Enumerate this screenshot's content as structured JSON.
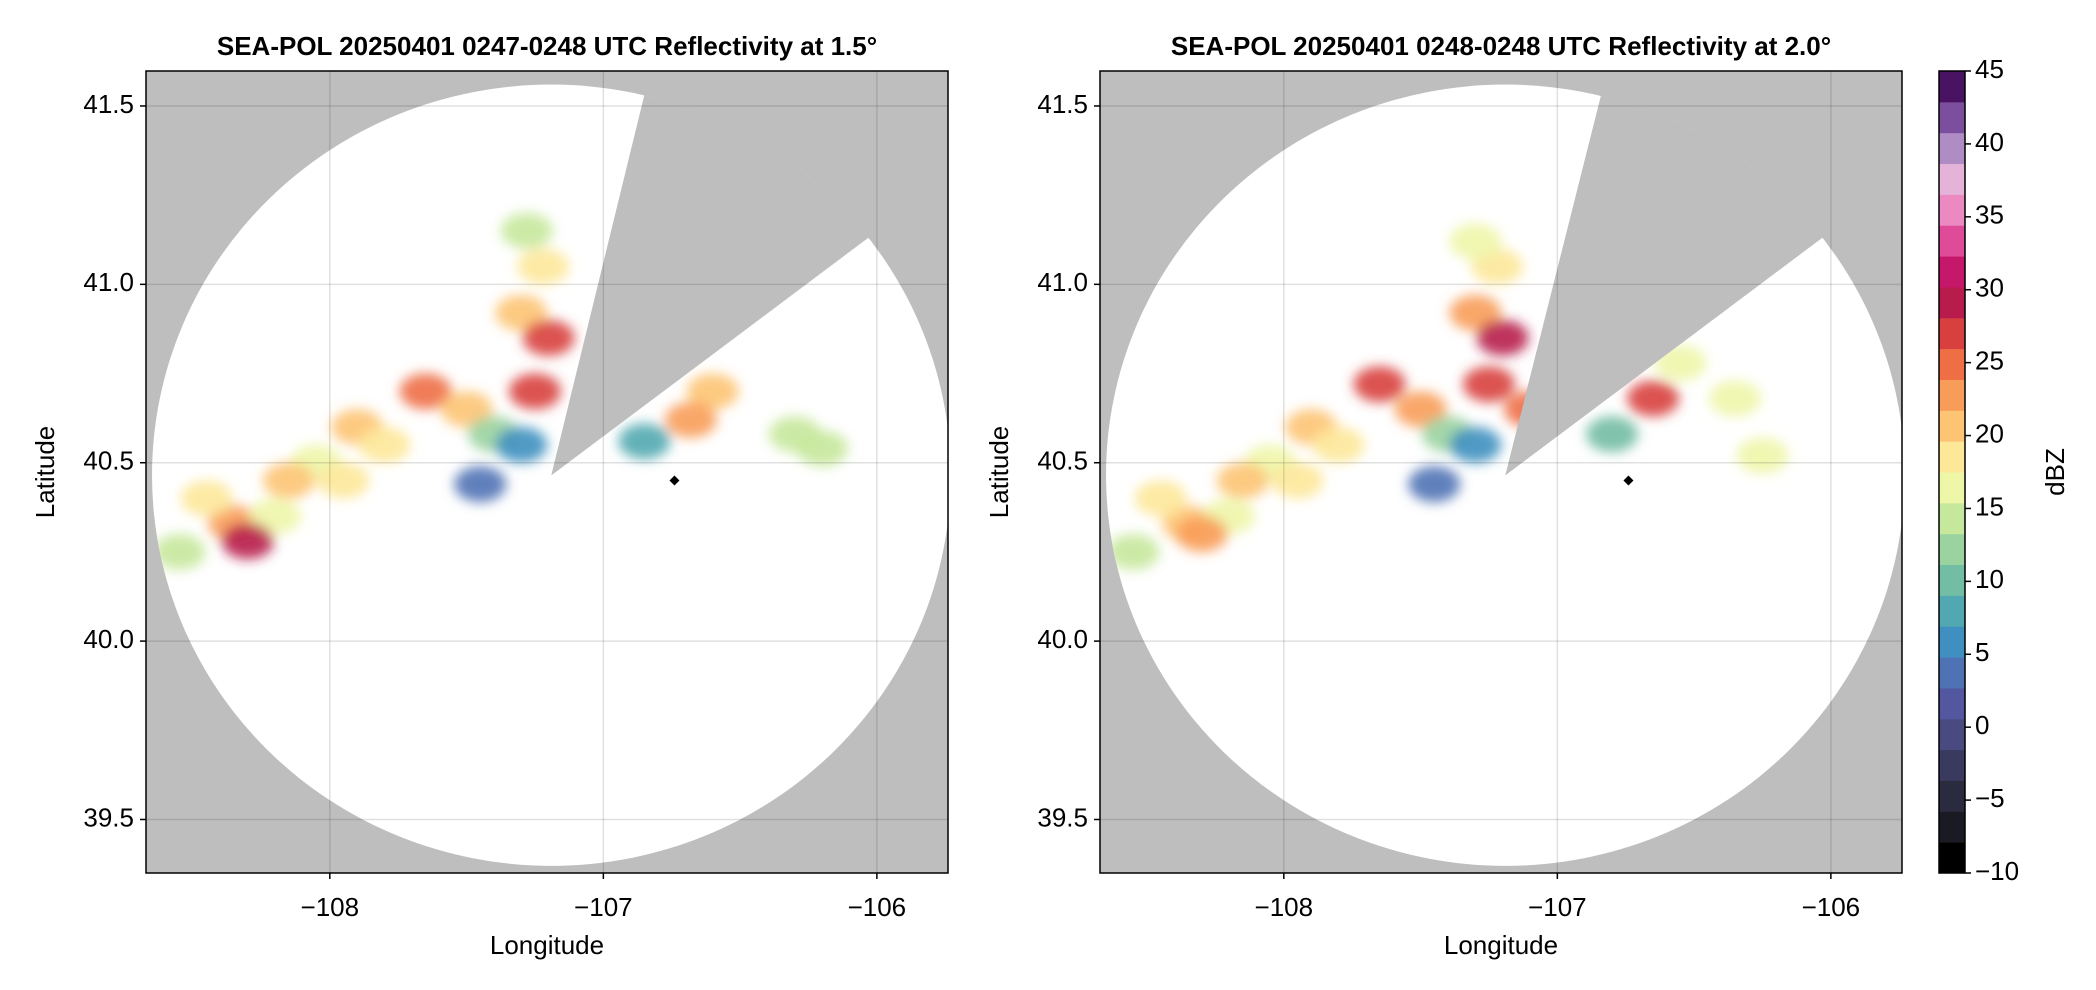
{
  "chart_data": [
    {
      "type": "radar",
      "title": "SEA-POL 20250401 0247-0248 UTC Reflectivity at 1.5°",
      "xlabel": "Longitude",
      "ylabel": "Latitude",
      "xlim": [
        -108.672,
        -105.74
      ],
      "ylim": [
        39.35,
        41.598
      ],
      "xticks": [
        {
          "value": -108,
          "label": "−108"
        },
        {
          "value": -107,
          "label": "−107"
        },
        {
          "value": -106,
          "label": "−106"
        }
      ],
      "yticks": [
        39.5,
        {
          "value": 40,
          "label": "40.0"
        },
        40.5,
        {
          "value": 41,
          "label": "41.0"
        },
        41.5
      ],
      "grid": true,
      "background": "#bebebe",
      "coverage": {
        "center_lon": -107.19,
        "center_lat": 40.465,
        "radius_lon": 1.46,
        "radius_lat": 1.095,
        "gap": [
          [
            -106.85,
            41.53
          ],
          [
            -106.05,
            41.12
          ]
        ]
      },
      "marker": {
        "x": -106.74,
        "y": 40.45
      },
      "x": [
        -108.35,
        -108.45,
        -108.2,
        -108.3,
        -108.55,
        -108.05,
        -107.9,
        -107.8,
        -107.65,
        -107.5,
        -107.4,
        -107.3,
        -107.45,
        -107.3,
        -107.22,
        -107.2,
        -107.25,
        -107.28,
        -106.6,
        -106.68,
        -106.85,
        -106.3,
        -106.2,
        -107.95,
        -108.15
      ],
      "y": [
        40.33,
        40.4,
        40.35,
        40.28,
        40.25,
        40.5,
        40.6,
        40.55,
        40.7,
        40.65,
        40.58,
        40.55,
        40.44,
        40.92,
        41.05,
        40.85,
        40.7,
        41.15,
        40.7,
        40.62,
        40.56,
        40.58,
        40.54,
        40.45,
        40.45
      ],
      "values": [
        22,
        18,
        17,
        30,
        14,
        16,
        20,
        18,
        25,
        20,
        12,
        6,
        3,
        20,
        18,
        28,
        26,
        15,
        20,
        22,
        8,
        15,
        15,
        18,
        20
      ]
    },
    {
      "type": "radar",
      "title": "SEA-POL 20250401 0248-0248 UTC Reflectivity at 2.0°",
      "xlabel": "Longitude",
      "ylabel": "Latitude",
      "xlim": [
        -108.672,
        -105.74
      ],
      "ylim": [
        39.35,
        41.598
      ],
      "xticks": [
        {
          "value": -108,
          "label": "−108"
        },
        {
          "value": -107,
          "label": "−107"
        },
        {
          "value": -106,
          "label": "−106"
        }
      ],
      "yticks": [
        39.5,
        {
          "value": 40,
          "label": "40.0"
        },
        40.5,
        {
          "value": 41,
          "label": "41.0"
        },
        41.5
      ],
      "grid": true,
      "background": "#bebebe",
      "coverage": {
        "center_lon": -107.19,
        "center_lat": 40.465,
        "radius_lon": 1.46,
        "radius_lat": 1.095,
        "gap": [
          [
            -106.84,
            41.53
          ],
          [
            -106.05,
            41.12
          ]
        ]
      },
      "marker": {
        "x": -106.74,
        "y": 40.45
      },
      "x": [
        -108.35,
        -108.45,
        -108.2,
        -108.3,
        -108.55,
        -108.05,
        -107.9,
        -107.8,
        -107.65,
        -107.5,
        -107.4,
        -107.3,
        -107.45,
        -107.3,
        -107.22,
        -107.2,
        -107.25,
        -107.3,
        -106.65,
        -106.55,
        -106.8,
        -106.35,
        -106.25,
        -107.95,
        -108.15,
        -107.1
      ],
      "y": [
        40.33,
        40.4,
        40.35,
        40.3,
        40.25,
        40.5,
        40.6,
        40.55,
        40.72,
        40.65,
        40.58,
        40.55,
        40.44,
        40.92,
        41.05,
        40.85,
        40.72,
        41.12,
        40.68,
        40.78,
        40.58,
        40.68,
        40.52,
        40.45,
        40.45,
        40.65
      ],
      "values": [
        20,
        18,
        17,
        22,
        14,
        16,
        20,
        18,
        26,
        22,
        12,
        6,
        3,
        22,
        18,
        29,
        27,
        16,
        27,
        16,
        10,
        17,
        16,
        18,
        20,
        24
      ],
      "colorbar": {
        "label": "dBZ",
        "clim": [
          -10,
          45
        ],
        "ticks": [
          {
            "value": -10,
            "label": "−10"
          },
          {
            "value": -5,
            "label": "−5"
          },
          0,
          5,
          10,
          15,
          20,
          25,
          30,
          35,
          40,
          45
        ],
        "colors": [
          "#000000",
          "#1a1a24",
          "#2b2b3f",
          "#3a3a5e",
          "#494a80",
          "#5357a0",
          "#4f72b5",
          "#3f90c0",
          "#52a8b0",
          "#72bda3",
          "#9ad3a0",
          "#c6e89c",
          "#eef6a8",
          "#fde89a",
          "#fdc474",
          "#f89d59",
          "#ee6e45",
          "#d8403f",
          "#b81c4c",
          "#c6186a",
          "#de4c99",
          "#ec89c0",
          "#e5b2d8",
          "#b08cc4",
          "#7c4f9e",
          "#4a1262"
        ]
      }
    }
  ]
}
